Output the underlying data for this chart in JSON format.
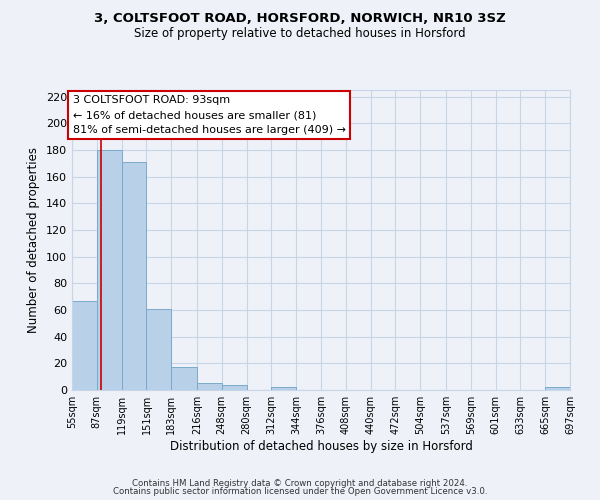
{
  "title1": "3, COLTSFOOT ROAD, HORSFORD, NORWICH, NR10 3SZ",
  "title2": "Size of property relative to detached houses in Horsford",
  "xlabel": "Distribution of detached houses by size in Horsford",
  "ylabel": "Number of detached properties",
  "bar_edges": [
    55,
    87,
    119,
    151,
    183,
    216,
    248,
    280,
    312,
    344,
    376,
    408,
    440,
    472,
    504,
    537,
    569,
    601,
    633,
    665,
    697
  ],
  "bar_heights": [
    67,
    180,
    171,
    61,
    17,
    5,
    4,
    0,
    2,
    0,
    0,
    0,
    0,
    0,
    0,
    0,
    0,
    0,
    0,
    2
  ],
  "bar_color": "#b8d0e8",
  "bar_edgecolor": "#7aaacb",
  "ylim": [
    0,
    225
  ],
  "yticks": [
    0,
    20,
    40,
    60,
    80,
    100,
    120,
    140,
    160,
    180,
    200,
    220
  ],
  "xtick_labels": [
    "55sqm",
    "87sqm",
    "119sqm",
    "151sqm",
    "183sqm",
    "216sqm",
    "248sqm",
    "280sqm",
    "312sqm",
    "344sqm",
    "376sqm",
    "408sqm",
    "440sqm",
    "472sqm",
    "504sqm",
    "537sqm",
    "569sqm",
    "601sqm",
    "633sqm",
    "665sqm",
    "697sqm"
  ],
  "property_size": 93,
  "vline_color": "#cc0000",
  "annotation_box_text1": "3 COLTSFOOT ROAD: 93sqm",
  "annotation_box_text2": "← 16% of detached houses are smaller (81)",
  "annotation_box_text3": "81% of semi-detached houses are larger (409) →",
  "annotation_box_edgecolor": "#cc0000",
  "footer1": "Contains HM Land Registry data © Crown copyright and database right 2024.",
  "footer2": "Contains public sector information licensed under the Open Government Licence v3.0.",
  "grid_color": "#c8d4e8",
  "background_color": "#eef2f8"
}
